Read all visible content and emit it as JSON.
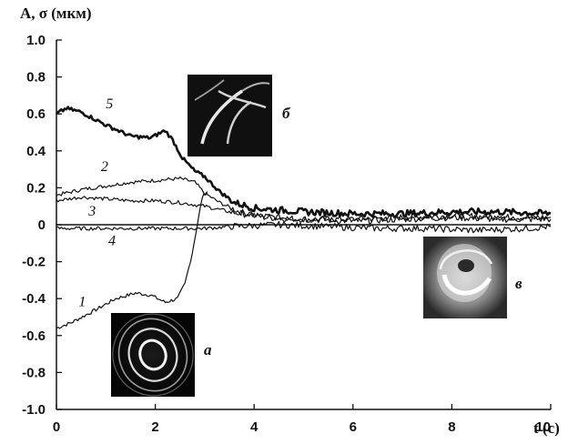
{
  "chart_data": {
    "type": "line",
    "ylabel": "A, σ (мкм)",
    "xlabel": "t (c)",
    "xlim": [
      0,
      10
    ],
    "ylim": [
      -1.0,
      1.0
    ],
    "x_ticks": [
      "0",
      "2",
      "4",
      "6",
      "8",
      "10"
    ],
    "y_ticks": [
      "1.0",
      "0.8",
      "0.6",
      "0.4",
      "0.2",
      "0",
      "-0.2",
      "-0.4",
      "-0.6",
      "-0.8",
      "-1.0"
    ],
    "grid": false,
    "series": [
      {
        "name": "1",
        "stroke": 1.2,
        "points": [
          [
            0,
            -0.56
          ],
          [
            0.3,
            -0.53
          ],
          [
            0.8,
            -0.46
          ],
          [
            1.2,
            -0.4
          ],
          [
            1.6,
            -0.37
          ],
          [
            1.9,
            -0.38
          ],
          [
            2.2,
            -0.42
          ],
          [
            2.45,
            -0.4
          ],
          [
            2.6,
            -0.32
          ],
          [
            2.75,
            -0.15
          ],
          [
            2.85,
            0.0
          ],
          [
            2.95,
            0.15
          ],
          [
            3.05,
            0.18
          ]
        ]
      },
      {
        "name": "2",
        "stroke": 1.2,
        "points": [
          [
            0,
            0.16
          ],
          [
            0.5,
            0.19
          ],
          [
            1.0,
            0.21
          ],
          [
            1.5,
            0.23
          ],
          [
            2.0,
            0.24
          ],
          [
            2.5,
            0.25
          ],
          [
            2.8,
            0.23
          ],
          [
            3.0,
            0.17
          ],
          [
            3.3,
            0.12
          ],
          [
            3.7,
            0.07
          ],
          [
            4.2,
            0.04
          ],
          [
            5.0,
            0.03
          ],
          [
            6.0,
            0.03
          ],
          [
            7.0,
            0.04
          ],
          [
            8.0,
            0.05
          ],
          [
            9.0,
            0.04
          ],
          [
            10,
            0.04
          ]
        ]
      },
      {
        "name": "3",
        "stroke": 1.2,
        "points": [
          [
            0,
            0.13
          ],
          [
            0.5,
            0.15
          ],
          [
            1.0,
            0.14
          ],
          [
            1.5,
            0.13
          ],
          [
            2.0,
            0.13
          ],
          [
            2.5,
            0.12
          ],
          [
            3.0,
            0.1
          ],
          [
            3.5,
            0.07
          ],
          [
            4.0,
            0.05
          ],
          [
            5.0,
            0.03
          ],
          [
            6.0,
            0.02
          ],
          [
            7.0,
            0.03
          ],
          [
            8.0,
            0.04
          ],
          [
            9.0,
            0.03
          ],
          [
            10,
            0.03
          ]
        ]
      },
      {
        "name": "4",
        "stroke": 1.2,
        "points": [
          [
            0,
            -0.02
          ],
          [
            1.0,
            -0.02
          ],
          [
            2.0,
            -0.02
          ],
          [
            3.0,
            -0.02
          ],
          [
            3.5,
            -0.01
          ],
          [
            4.5,
            0.0
          ],
          [
            5.5,
            -0.01
          ],
          [
            6.5,
            -0.02
          ],
          [
            7.5,
            -0.02
          ],
          [
            8.5,
            -0.03
          ],
          [
            9.5,
            -0.02
          ],
          [
            10,
            -0.01
          ]
        ]
      },
      {
        "name": "5",
        "stroke": 2.6,
        "points": [
          [
            0,
            0.6
          ],
          [
            0.2,
            0.63
          ],
          [
            0.5,
            0.61
          ],
          [
            1.0,
            0.54
          ],
          [
            1.5,
            0.48
          ],
          [
            1.9,
            0.47
          ],
          [
            2.2,
            0.51
          ],
          [
            2.35,
            0.46
          ],
          [
            2.55,
            0.36
          ],
          [
            2.8,
            0.29
          ],
          [
            3.0,
            0.26
          ],
          [
            3.3,
            0.18
          ],
          [
            3.6,
            0.12
          ],
          [
            4.0,
            0.09
          ],
          [
            5.0,
            0.07
          ],
          [
            6.0,
            0.06
          ],
          [
            7.0,
            0.06
          ],
          [
            8.0,
            0.07
          ],
          [
            9.0,
            0.07
          ],
          [
            10,
            0.06
          ]
        ]
      }
    ],
    "curve_labels": [
      {
        "text": "5",
        "x": 1.0,
        "y": 0.63
      },
      {
        "text": "2",
        "x": 0.9,
        "y": 0.29
      },
      {
        "text": "3",
        "x": 0.65,
        "y": 0.05
      },
      {
        "text": "4",
        "x": 1.05,
        "y": -0.11
      },
      {
        "text": "1",
        "x": 0.45,
        "y": -0.44
      }
    ],
    "panel_labels": [
      "б",
      "в",
      "а"
    ]
  }
}
